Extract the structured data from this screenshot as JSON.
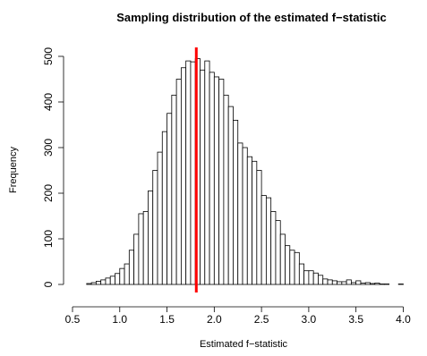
{
  "chart_data": {
    "type": "bar",
    "title": "Sampling distribution of the estimated f−statistic",
    "xlabel": "Estimated f−statistic",
    "ylabel": "Frequency",
    "xlim": [
      0.5,
      4.1
    ],
    "ylim": [
      0,
      520
    ],
    "bin_width": 0.05,
    "bin_start": 0.6,
    "x_ticks": [
      {
        "value": 0.5,
        "label": "0.5"
      },
      {
        "value": 1.0,
        "label": "1.0"
      },
      {
        "value": 1.5,
        "label": "1.5"
      },
      {
        "value": 2.0,
        "label": "2.0"
      },
      {
        "value": 2.5,
        "label": "2.5"
      },
      {
        "value": 3.0,
        "label": "3.0"
      },
      {
        "value": 3.5,
        "label": "3.5"
      },
      {
        "value": 4.0,
        "label": "4.0"
      }
    ],
    "y_ticks": [
      {
        "value": 0,
        "label": "0"
      },
      {
        "value": 100,
        "label": "100"
      },
      {
        "value": 200,
        "label": "200"
      },
      {
        "value": 300,
        "label": "300"
      },
      {
        "value": 400,
        "label": "400"
      },
      {
        "value": 500,
        "label": "500"
      }
    ],
    "values": [
      0,
      2,
      4,
      7,
      10,
      14,
      18,
      24,
      35,
      45,
      75,
      110,
      155,
      160,
      205,
      250,
      290,
      335,
      375,
      415,
      450,
      475,
      490,
      488,
      495,
      470,
      490,
      465,
      455,
      450,
      415,
      390,
      360,
      310,
      300,
      280,
      270,
      250,
      195,
      190,
      160,
      140,
      110,
      85,
      75,
      70,
      45,
      30,
      30,
      25,
      20,
      12,
      10,
      8,
      6,
      6,
      10,
      4,
      8,
      3,
      4,
      2,
      3,
      1,
      1,
      0,
      0,
      1,
      0,
      0
    ],
    "reference_line": {
      "x": 1.81,
      "color": "#ff0000"
    }
  }
}
